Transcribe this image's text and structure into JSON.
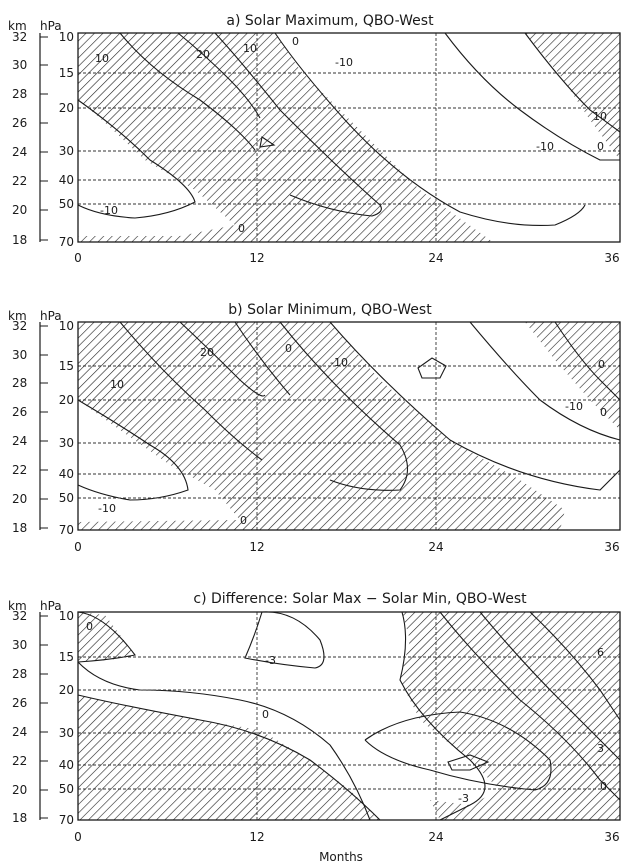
{
  "figure": {
    "xlabel": "Months"
  },
  "chart_data": [
    {
      "type": "contour",
      "panel_id": "a",
      "title": "a)  Solar Maximum, QBO-West",
      "xlim": [
        0,
        36
      ],
      "x_ticks": [
        "0",
        "12",
        "24",
        "36"
      ],
      "y_axis_left_label": "km",
      "y_axis_right_label": "hPa",
      "km_ticks": [
        "32",
        "30",
        "28",
        "26",
        "24",
        "22",
        "20",
        "18"
      ],
      "hpa_ticks": [
        "10",
        "15",
        "20",
        "30",
        "40",
        "50",
        "70"
      ],
      "grid": "dashed at each pressure level and month 12, 24",
      "shading": "hatched regions: negative winds (easterly)",
      "contour_labels": [
        {
          "text": "10",
          "month": 3.0,
          "hpa": 13.5
        },
        {
          "text": "20",
          "month": 8.0,
          "hpa": 11.8
        },
        {
          "text": "10",
          "month": 11.5,
          "hpa": 11.4
        },
        {
          "text": "0",
          "month": 14.5,
          "hpa": 11.0
        },
        {
          "text": "-10",
          "month": 18.0,
          "hpa": 12.8
        },
        {
          "text": "10",
          "month": 34.5,
          "hpa": 22.0
        },
        {
          "text": "0",
          "month": 35.0,
          "hpa": 26.0
        },
        {
          "text": "-10",
          "month": 30.0,
          "hpa": 28.0
        },
        {
          "text": "-10",
          "month": 2.5,
          "hpa": 58.0
        },
        {
          "text": "0",
          "month": 11.5,
          "hpa": 64.0
        }
      ]
    },
    {
      "type": "contour",
      "panel_id": "b",
      "title": "b)  Solar Minimum, QBO-West",
      "xlim": [
        0,
        36
      ],
      "x_ticks": [
        "0",
        "12",
        "24",
        "36"
      ],
      "y_axis_left_label": "km",
      "y_axis_right_label": "hPa",
      "km_ticks": [
        "32",
        "30",
        "28",
        "26",
        "24",
        "22",
        "20",
        "18"
      ],
      "hpa_ticks": [
        "10",
        "15",
        "20",
        "30",
        "40",
        "50",
        "70"
      ],
      "grid": "dashed at each pressure level and month 12, 24",
      "shading": "hatched regions: negative winds (easterly)",
      "contour_labels": [
        {
          "text": "10",
          "month": 4.0,
          "hpa": 19.0
        },
        {
          "text": "20",
          "month": 9.0,
          "hpa": 14.0
        },
        {
          "text": "0",
          "month": 15.0,
          "hpa": 13.5
        },
        {
          "text": "-10",
          "month": 18.0,
          "hpa": 15.5
        },
        {
          "text": "-10",
          "month": 32.0,
          "hpa": 22.0
        },
        {
          "text": "0",
          "month": 35.5,
          "hpa": 15.5
        },
        {
          "text": "0",
          "month": 35.5,
          "hpa": 24.0
        },
        {
          "text": "-10",
          "month": 3.0,
          "hpa": 58.0
        },
        {
          "text": "0",
          "month": 12.0,
          "hpa": 65.0
        }
      ]
    },
    {
      "type": "contour",
      "panel_id": "c",
      "title": "c)  Difference: Solar Max − Solar Min, QBO-West",
      "xlim": [
        0,
        36
      ],
      "x_ticks": [
        "0",
        "12",
        "24",
        "36"
      ],
      "y_axis_left_label": "km",
      "y_axis_right_label": "hPa",
      "km_ticks": [
        "32",
        "30",
        "28",
        "26",
        "24",
        "22",
        "20",
        "18"
      ],
      "hpa_ticks": [
        "10",
        "15",
        "20",
        "30",
        "40",
        "50",
        "70"
      ],
      "grid": "dashed at each pressure level and month 12, 24",
      "shading": "hatched regions: negative differences",
      "contour_labels": [
        {
          "text": "0",
          "month": 1.2,
          "hpa": 11.5
        },
        {
          "text": "-3",
          "month": 13.0,
          "hpa": 16.0
        },
        {
          "text": "0",
          "month": 12.0,
          "hpa": 27.0
        },
        {
          "text": "-3",
          "month": 23.0,
          "hpa": 50.0
        },
        {
          "text": "6",
          "month": 34.5,
          "hpa": 17.0
        },
        {
          "text": "3",
          "month": 34.5,
          "hpa": 36.0
        },
        {
          "text": "0",
          "month": 35.0,
          "hpa": 43.0
        }
      ]
    }
  ]
}
